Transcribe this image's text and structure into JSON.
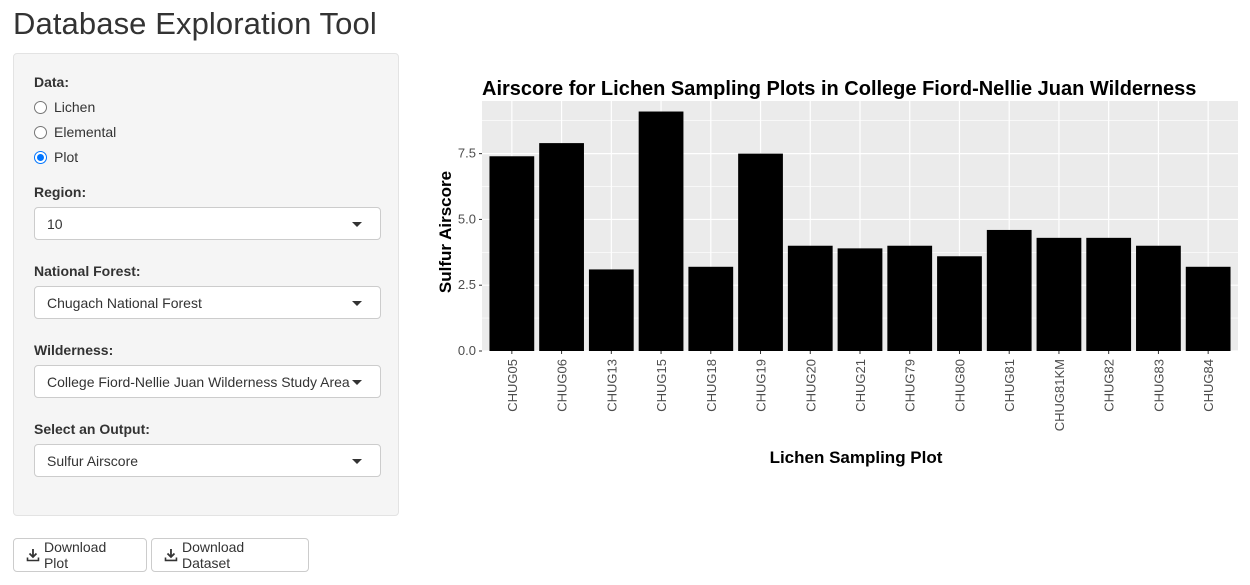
{
  "app": {
    "title": "Database Exploration Tool"
  },
  "sidebar": {
    "data_label": "Data:",
    "data_options": [
      {
        "label": "Lichen",
        "checked": false
      },
      {
        "label": "Elemental",
        "checked": false
      },
      {
        "label": "Plot",
        "checked": true
      }
    ],
    "region": {
      "label": "Region:",
      "value": "10"
    },
    "national_forest": {
      "label": "National Forest:",
      "value": "Chugach National Forest"
    },
    "wilderness": {
      "label": "Wilderness:",
      "value": "College Fiord-Nellie Juan Wilderness Study Area"
    },
    "output": {
      "label": "Select an Output:",
      "value": "Sulfur Airscore"
    }
  },
  "buttons": {
    "download_plot": "Download Plot",
    "download_dataset": "Download Dataset",
    "icon": "download-icon"
  },
  "colors": {
    "bar": "#000000",
    "panel": "#ebebeb",
    "grid": "#ffffff",
    "radio_accent": "#0075ff"
  },
  "chart_data": {
    "type": "bar",
    "title": "Airscore for Lichen Sampling Plots in College Fiord-Nellie Juan Wilderness",
    "xlabel": "Lichen Sampling Plot",
    "ylabel": "Sulfur Airscore",
    "categories": [
      "CHUG05",
      "CHUG06",
      "CHUG13",
      "CHUG15",
      "CHUG18",
      "CHUG19",
      "CHUG20",
      "CHUG21",
      "CHUG79",
      "CHUG80",
      "CHUG81",
      "CHUG81KM",
      "CHUG82",
      "CHUG83",
      "CHUG84"
    ],
    "values": [
      7.4,
      7.9,
      3.1,
      9.1,
      3.2,
      7.5,
      4.0,
      3.9,
      4.0,
      3.6,
      4.6,
      4.3,
      4.3,
      4.0,
      3.2
    ],
    "yticks": [
      0.0,
      2.5,
      5.0,
      7.5
    ],
    "ytick_labels": [
      "0.0",
      "2.5",
      "5.0",
      "7.5"
    ],
    "ylim": [
      0,
      9.5
    ],
    "grid": true,
    "legend": "none"
  }
}
